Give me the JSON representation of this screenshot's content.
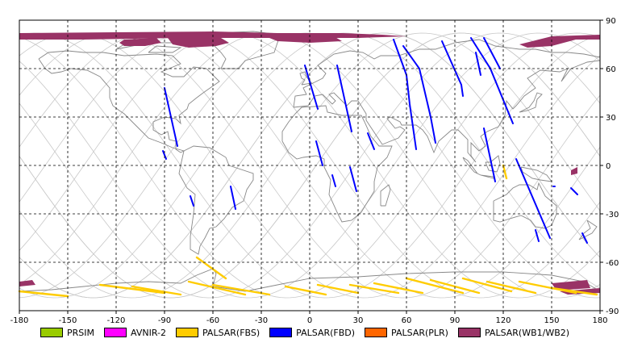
{
  "map": {
    "lon_range": [
      -180,
      180
    ],
    "lat_range": [
      -90,
      90
    ],
    "lon_ticks": [
      -180,
      -150,
      -120,
      -90,
      -60,
      -30,
      0,
      30,
      60,
      90,
      120,
      150,
      180
    ],
    "lat_ticks": [
      90,
      60,
      30,
      0,
      -30,
      -60,
      -90
    ],
    "lon_tick_labels": [
      "-180",
      "-150",
      "-120",
      "-90",
      "-60",
      "-30",
      "0",
      "30",
      "60",
      "90",
      "120",
      "150",
      "180"
    ],
    "lat_tick_labels": [
      "90",
      "60",
      "30",
      "0",
      "-30",
      "-60",
      "-90"
    ],
    "grid": "dashed"
  },
  "legend": [
    {
      "label": "PRSIM",
      "color": "#99cc00"
    },
    {
      "label": "AVNIR-2",
      "color": "#ff00ff"
    },
    {
      "label": "PALSAR(FBS)",
      "color": "#ffcc00"
    },
    {
      "label": "PALSAR(FBD)",
      "color": "#0000ff"
    },
    {
      "label": "PALSAR(PLR)",
      "color": "#ff6600"
    },
    {
      "label": "PALSAR(WB1/WB2)",
      "color": "#993366"
    }
  ],
  "colors": {
    "grid": "#000000",
    "coastline": "#888888",
    "orbit": "#c8c8c8",
    "fbs": "#ffcc00",
    "fbd": "#0000ff",
    "wb": "#993366"
  }
}
